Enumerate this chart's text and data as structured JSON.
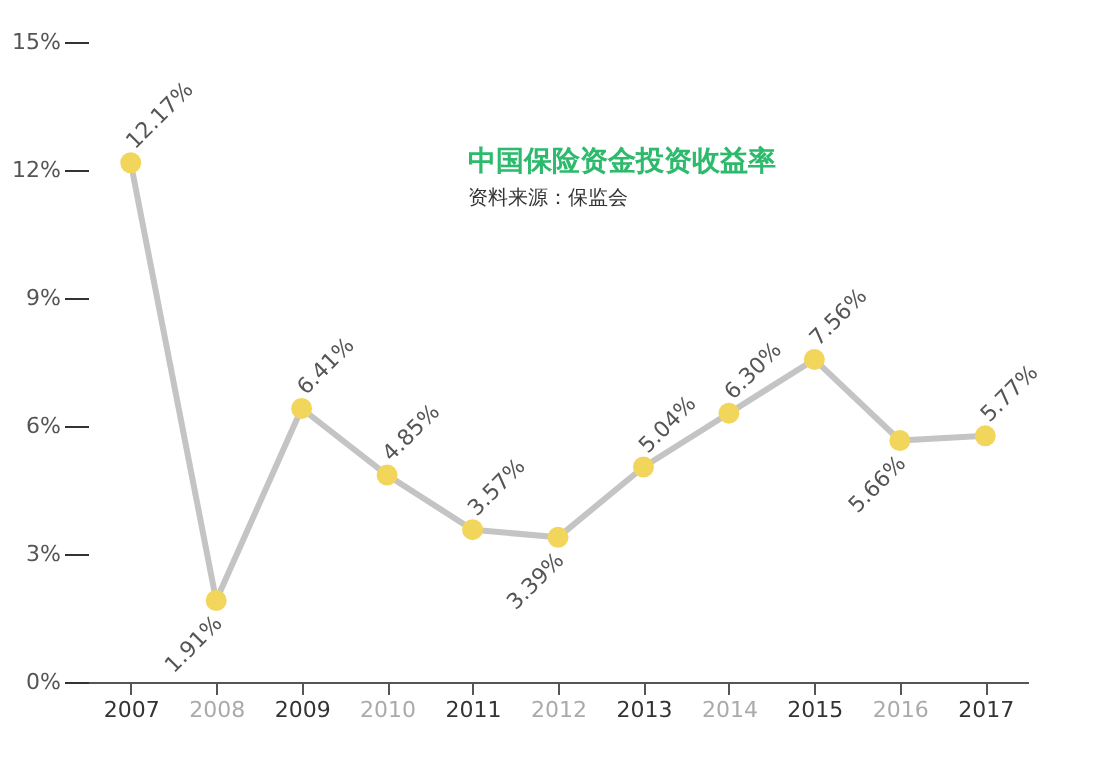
{
  "chart_data": {
    "type": "line",
    "title": "中国保险资金投资收益率",
    "subtitle": "资料来源：保监会",
    "categories": [
      "2007",
      "2008",
      "2009",
      "2010",
      "2011",
      "2012",
      "2013",
      "2014",
      "2015",
      "2016",
      "2017"
    ],
    "series": [
      {
        "color": "#c4c4c4",
        "colors": [
          "#f2d65c",
          "#f2d65c",
          "#f2d65c",
          "#f2d65c",
          "#f2d65c",
          "#f2d65c",
          "#f2d65c",
          "#f2d65c",
          "#f2d65c",
          "#f2d65c",
          "#f2d65c"
        ],
        "values": [
          12.17,
          1.91,
          6.41,
          4.85,
          3.57,
          3.39,
          5.04,
          6.3,
          7.56,
          5.66,
          5.77
        ],
        "value_labels": [
          "12.17%",
          "1.91%",
          "6.41%",
          "4.85%",
          "3.57%",
          "3.39%",
          "5.04%",
          "6.30%",
          "7.56%",
          "5.66%",
          "5.77%"
        ]
      }
    ],
    "ylim": [
      0,
      15
    ],
    "yticks": [
      {
        "value": 0,
        "label": "0%"
      },
      {
        "value": 3,
        "label": "3%"
      },
      {
        "value": 6,
        "label": "6%"
      },
      {
        "value": 9,
        "label": "9%"
      },
      {
        "value": 12,
        "label": "12%"
      },
      {
        "value": 15,
        "label": "15%"
      }
    ],
    "grid": false,
    "marker": "circle",
    "line_style": "solid"
  }
}
